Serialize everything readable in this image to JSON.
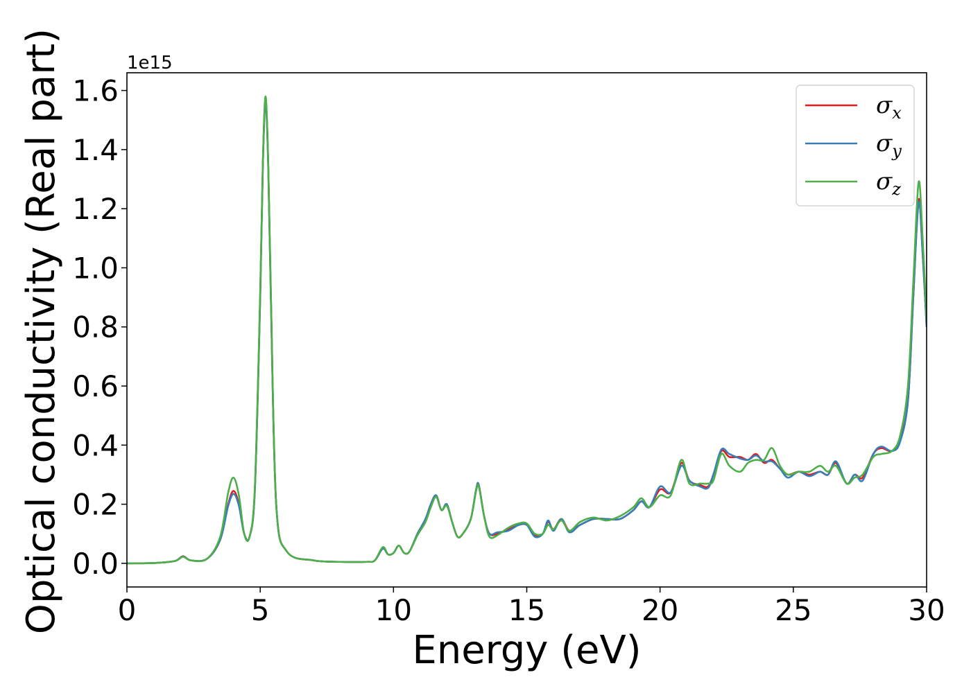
{
  "chart_data": {
    "type": "line",
    "xlabel": "Energy (eV)",
    "ylabel": "Optical conductivity (Real part)",
    "y_offset_text": "1e15",
    "y_scale_factor": 1000000000000000.0,
    "xlim": [
      0,
      30
    ],
    "ylim": [
      -0.08,
      1.66
    ],
    "x_ticks": [
      0,
      5,
      10,
      15,
      20,
      25,
      30
    ],
    "x_tick_labels": [
      "0",
      "5",
      "10",
      "15",
      "20",
      "25",
      "30"
    ],
    "y_ticks": [
      0.0,
      0.2,
      0.4,
      0.6,
      0.8,
      1.0,
      1.2,
      1.4,
      1.6
    ],
    "y_tick_labels": [
      "0.0",
      "0.2",
      "0.4",
      "0.6",
      "0.8",
      "1.0",
      "1.2",
      "1.4",
      "1.6"
    ],
    "grid": false,
    "legend_position": "top-right",
    "series": [
      {
        "name": "σ",
        "subscript": "x",
        "color": "#e41a1c",
        "x": [
          0,
          1,
          1.8,
          2.1,
          2.4,
          3,
          3.5,
          3.8,
          4,
          4.2,
          4.4,
          4.6,
          4.8,
          5,
          5.1,
          5.2,
          5.3,
          5.4,
          5.6,
          6,
          7,
          8,
          9,
          9.3,
          9.6,
          9.8,
          10,
          10.2,
          10.4,
          10.6,
          10.9,
          11.2,
          11.4,
          11.6,
          11.8,
          12,
          12.2,
          12.4,
          12.6,
          12.9,
          13.1,
          13.2,
          13.4,
          13.6,
          13.9,
          14.3,
          14.7,
          15,
          15.3,
          15.6,
          15.8,
          16,
          16.3,
          16.6,
          17,
          17.5,
          18,
          18.5,
          19,
          19.3,
          19.6,
          20,
          20.4,
          20.8,
          21.1,
          21.5,
          21.8,
          22,
          22.3,
          22.6,
          23,
          23.3,
          23.6,
          23.9,
          24.2,
          24.5,
          24.8,
          25.2,
          25.6,
          26,
          26.3,
          26.6,
          27,
          27.3,
          27.6,
          28,
          28.3,
          28.7,
          29,
          29.3,
          29.5,
          29.7,
          29.85,
          30
        ],
        "values": [
          0,
          0.001,
          0.008,
          0.024,
          0.01,
          0.015,
          0.08,
          0.2,
          0.245,
          0.2,
          0.1,
          0.09,
          0.25,
          0.9,
          1.35,
          1.57,
          1.35,
          0.9,
          0.2,
          0.04,
          0.01,
          0.005,
          0.005,
          0.01,
          0.05,
          0.03,
          0.035,
          0.06,
          0.035,
          0.04,
          0.1,
          0.15,
          0.2,
          0.23,
          0.18,
          0.2,
          0.14,
          0.09,
          0.1,
          0.15,
          0.25,
          0.265,
          0.16,
          0.1,
          0.1,
          0.115,
          0.13,
          0.13,
          0.095,
          0.1,
          0.14,
          0.115,
          0.15,
          0.11,
          0.13,
          0.15,
          0.15,
          0.15,
          0.18,
          0.21,
          0.19,
          0.25,
          0.24,
          0.34,
          0.28,
          0.265,
          0.26,
          0.3,
          0.38,
          0.36,
          0.36,
          0.35,
          0.37,
          0.34,
          0.35,
          0.32,
          0.3,
          0.31,
          0.3,
          0.31,
          0.3,
          0.34,
          0.27,
          0.3,
          0.29,
          0.37,
          0.39,
          0.38,
          0.42,
          0.55,
          0.9,
          1.23,
          1.05,
          0.8
        ]
      },
      {
        "name": "σ",
        "subscript": "y",
        "color": "#377eb8",
        "x": [
          0,
          1,
          1.8,
          2.1,
          2.4,
          3,
          3.5,
          3.8,
          4,
          4.2,
          4.4,
          4.6,
          4.8,
          5,
          5.1,
          5.2,
          5.3,
          5.4,
          5.6,
          6,
          7,
          8,
          9,
          9.3,
          9.6,
          9.8,
          10,
          10.2,
          10.4,
          10.6,
          10.9,
          11.2,
          11.4,
          11.6,
          11.8,
          12,
          12.2,
          12.4,
          12.6,
          12.9,
          13.1,
          13.2,
          13.4,
          13.6,
          13.9,
          14.3,
          14.7,
          15,
          15.3,
          15.6,
          15.8,
          16,
          16.3,
          16.6,
          17,
          17.5,
          18,
          18.5,
          19,
          19.3,
          19.6,
          20,
          20.4,
          20.8,
          21.1,
          21.5,
          21.8,
          22,
          22.3,
          22.6,
          23,
          23.3,
          23.6,
          23.9,
          24.2,
          24.5,
          24.8,
          25.2,
          25.6,
          26,
          26.3,
          26.6,
          27,
          27.3,
          27.6,
          28,
          28.3,
          28.7,
          29,
          29.3,
          29.5,
          29.7,
          29.85,
          30
        ],
        "values": [
          0,
          0.001,
          0.008,
          0.023,
          0.01,
          0.015,
          0.08,
          0.195,
          0.235,
          0.195,
          0.1,
          0.09,
          0.25,
          0.9,
          1.35,
          1.56,
          1.35,
          0.9,
          0.2,
          0.04,
          0.01,
          0.005,
          0.005,
          0.01,
          0.05,
          0.03,
          0.035,
          0.06,
          0.035,
          0.04,
          0.1,
          0.15,
          0.2,
          0.23,
          0.18,
          0.2,
          0.14,
          0.09,
          0.1,
          0.15,
          0.25,
          0.265,
          0.16,
          0.1,
          0.105,
          0.11,
          0.13,
          0.13,
          0.09,
          0.1,
          0.145,
          0.11,
          0.15,
          0.105,
          0.13,
          0.15,
          0.15,
          0.15,
          0.18,
          0.21,
          0.19,
          0.26,
          0.24,
          0.33,
          0.28,
          0.26,
          0.255,
          0.3,
          0.385,
          0.37,
          0.355,
          0.35,
          0.365,
          0.345,
          0.345,
          0.32,
          0.29,
          0.31,
          0.295,
          0.31,
          0.3,
          0.345,
          0.27,
          0.3,
          0.28,
          0.37,
          0.395,
          0.38,
          0.41,
          0.55,
          0.9,
          1.22,
          1.05,
          0.8
        ]
      },
      {
        "name": "σ",
        "subscript": "z",
        "color": "#4daf4a",
        "x": [
          0,
          1,
          1.8,
          2.1,
          2.4,
          3,
          3.5,
          3.8,
          4,
          4.2,
          4.4,
          4.6,
          4.8,
          5,
          5.1,
          5.2,
          5.3,
          5.4,
          5.6,
          6,
          7,
          8,
          9,
          9.3,
          9.6,
          9.8,
          10,
          10.2,
          10.4,
          10.6,
          10.9,
          11.2,
          11.4,
          11.6,
          11.8,
          12,
          12.2,
          12.4,
          12.6,
          12.9,
          13.1,
          13.2,
          13.4,
          13.6,
          13.9,
          14.3,
          14.7,
          15,
          15.3,
          15.6,
          15.8,
          16,
          16.3,
          16.6,
          17,
          17.5,
          18,
          18.5,
          19,
          19.3,
          19.6,
          20,
          20.4,
          20.8,
          21.1,
          21.5,
          21.8,
          22,
          22.3,
          22.6,
          23,
          23.3,
          23.6,
          23.9,
          24.2,
          24.5,
          24.8,
          25.2,
          25.6,
          26,
          26.3,
          26.6,
          27,
          27.3,
          27.6,
          28,
          28.3,
          28.7,
          29,
          29.3,
          29.5,
          29.7,
          29.85,
          30
        ],
        "values": [
          0,
          0.001,
          0.008,
          0.022,
          0.01,
          0.015,
          0.09,
          0.24,
          0.29,
          0.23,
          0.1,
          0.09,
          0.26,
          0.92,
          1.36,
          1.58,
          1.36,
          0.92,
          0.2,
          0.04,
          0.01,
          0.005,
          0.005,
          0.01,
          0.055,
          0.03,
          0.035,
          0.06,
          0.035,
          0.04,
          0.095,
          0.14,
          0.19,
          0.225,
          0.18,
          0.195,
          0.14,
          0.09,
          0.1,
          0.15,
          0.245,
          0.26,
          0.16,
          0.09,
          0.095,
          0.12,
          0.135,
          0.135,
          0.1,
          0.1,
          0.13,
          0.115,
          0.145,
          0.11,
          0.14,
          0.155,
          0.145,
          0.16,
          0.19,
          0.22,
          0.19,
          0.23,
          0.23,
          0.35,
          0.27,
          0.27,
          0.27,
          0.28,
          0.37,
          0.33,
          0.31,
          0.34,
          0.35,
          0.35,
          0.39,
          0.33,
          0.3,
          0.31,
          0.31,
          0.33,
          0.31,
          0.33,
          0.27,
          0.29,
          0.3,
          0.36,
          0.37,
          0.38,
          0.43,
          0.6,
          0.95,
          1.29,
          1.1,
          0.82
        ]
      }
    ]
  }
}
